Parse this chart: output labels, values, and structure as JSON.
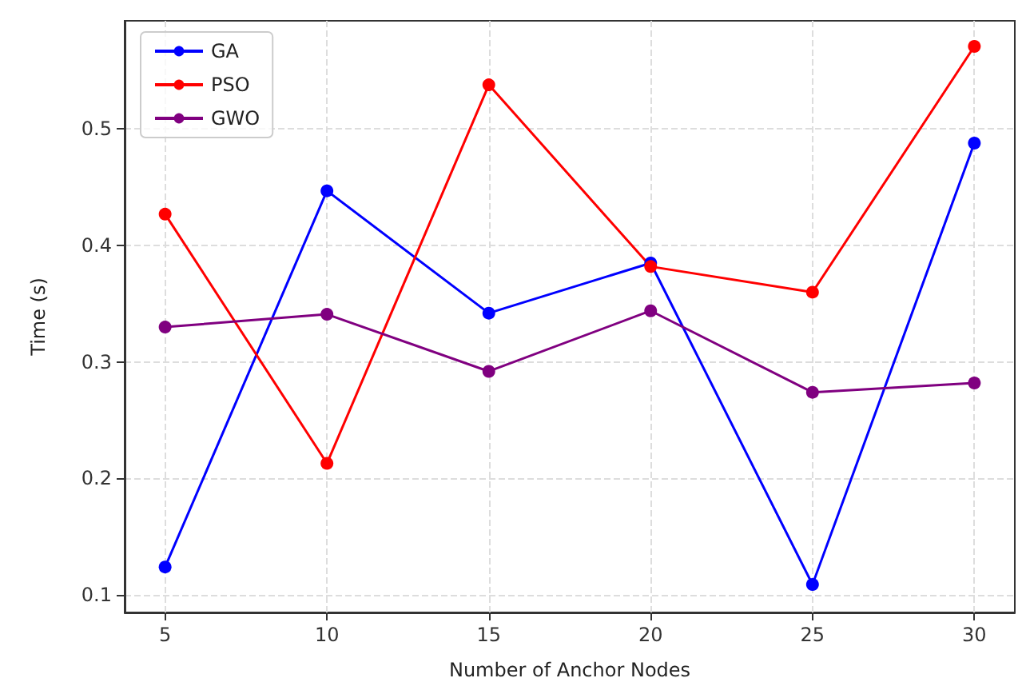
{
  "chart_data": {
    "type": "line",
    "xlabel": "Number of Anchor Nodes",
    "ylabel": "Time (s)",
    "x": [
      5,
      10,
      15,
      20,
      25,
      30
    ],
    "series": [
      {
        "name": "GA",
        "color": "#0000ff",
        "values": [
          0.124,
          0.447,
          0.342,
          0.385,
          0.109,
          0.488
        ]
      },
      {
        "name": "PSO",
        "color": "#ff0000",
        "values": [
          0.427,
          0.213,
          0.538,
          0.382,
          0.36,
          0.571
        ]
      },
      {
        "name": "GWO",
        "color": "#800080",
        "values": [
          0.33,
          0.341,
          0.292,
          0.344,
          0.274,
          0.282
        ]
      }
    ],
    "xlim": [
      3.75,
      31.25
    ],
    "xticks": [
      5,
      10,
      15,
      20,
      25,
      30
    ],
    "ylim": [
      0.085,
      0.593
    ],
    "yticks": [
      0.1,
      0.2,
      0.3,
      0.4,
      0.5
    ],
    "grid": true,
    "legend": "top left",
    "marker": "circle",
    "line_style": "solid"
  }
}
